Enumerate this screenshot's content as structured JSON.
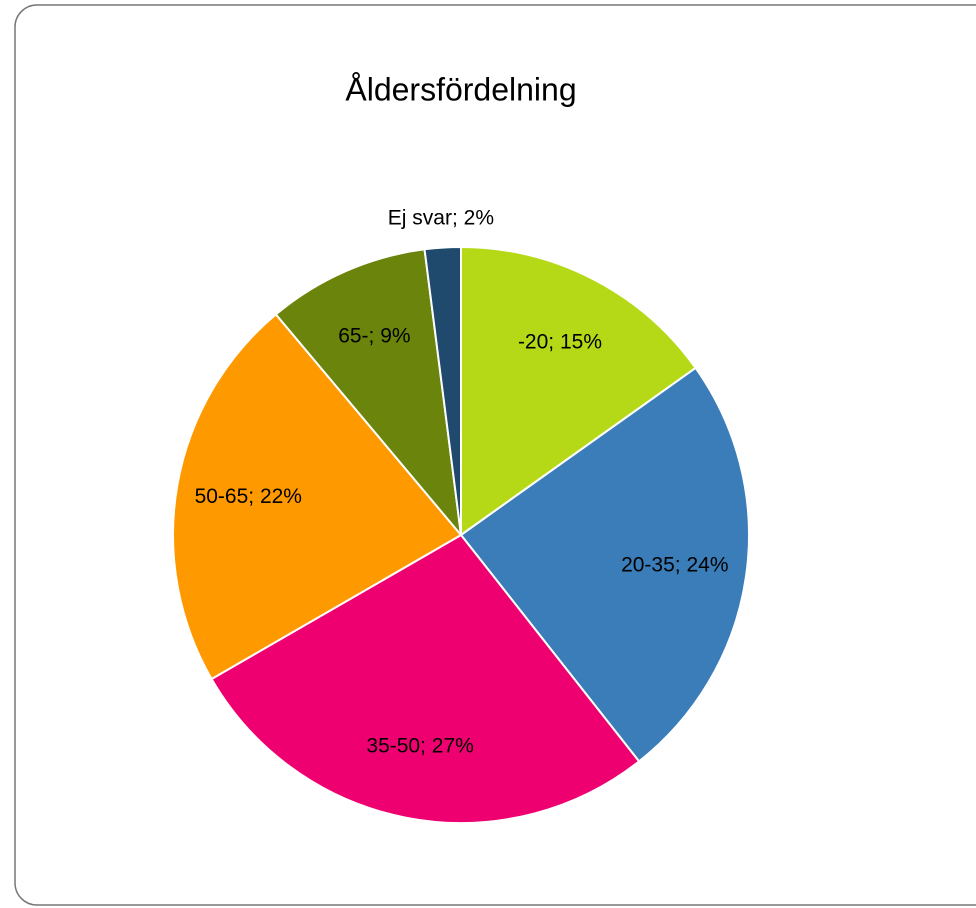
{
  "chart_data": {
    "type": "pie",
    "title": "Åldersfördelning",
    "categories": [
      "-20",
      "20-35",
      "35-50",
      "50-65",
      "65-",
      "Ej svar"
    ],
    "values": [
      15,
      24,
      27,
      22,
      9,
      2
    ],
    "value_labels": [
      "-20; 15%",
      "20-35; 24%",
      "35-50; 27%",
      "50-65; 22%",
      "65-; 9%",
      "Ej svar; 2%"
    ],
    "colors": [
      "#b5d916",
      "#3a7db8",
      "#ef0070",
      "#ff9900",
      "#6b840c",
      "#1f4a6e"
    ]
  }
}
